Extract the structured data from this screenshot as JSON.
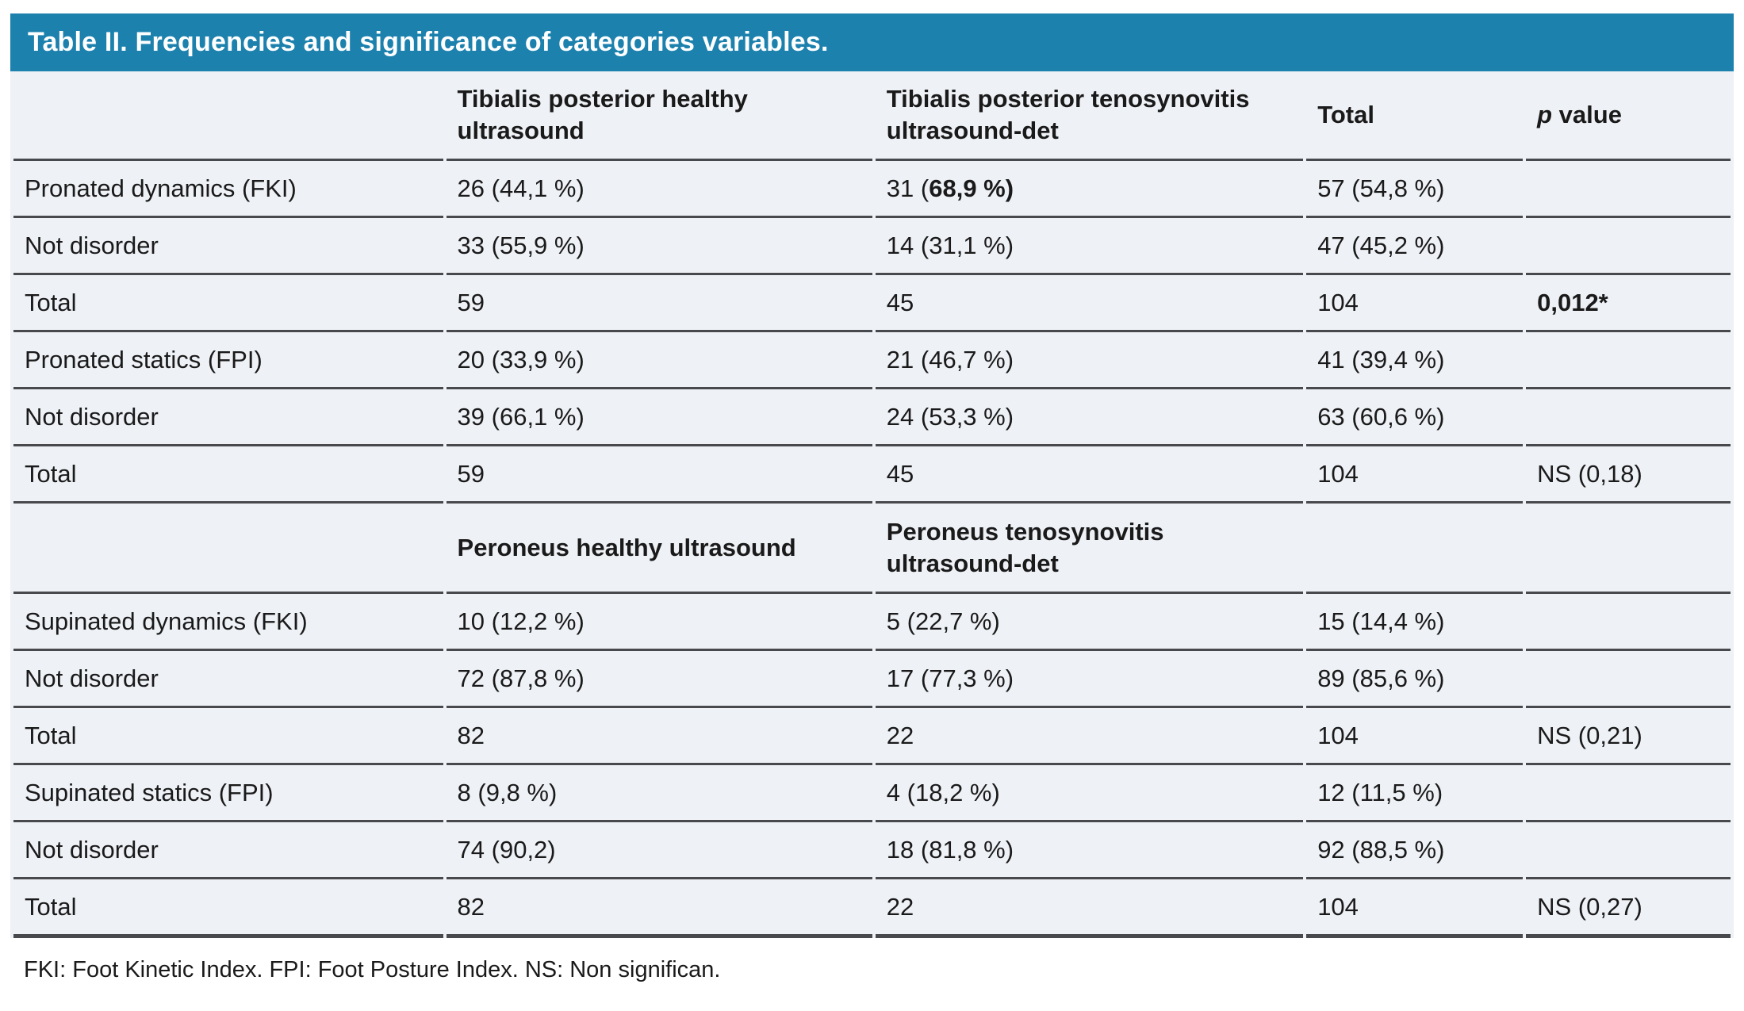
{
  "title": "Table II. Frequencies and significance of categories variables.",
  "colors": {
    "header_bar_bg": "#1c81ad",
    "title_text": "#ffffff",
    "table_bg": "#eef1f6",
    "rule": "#47494c",
    "text": "#1a1a1a"
  },
  "columns": {
    "col1": "",
    "col2": "Tibialis posterior healthy ultrasound",
    "col3": "Tibialis posterior tenosynovitis ultrasound-det",
    "col4": "Total",
    "p_italic": "p",
    "p_rest": " value"
  },
  "rows": [
    {
      "cells": [
        [
          {
            "t": "Pronated dynamics (FKI)"
          }
        ],
        [
          {
            "t": "26 (44,1 %)"
          }
        ],
        [
          {
            "t": "31 ("
          },
          {
            "t": "68,9 %)",
            "bold": true
          }
        ],
        [
          {
            "t": "57 (54,8 %)"
          }
        ],
        []
      ]
    },
    {
      "cells": [
        [
          {
            "t": "Not disorder"
          }
        ],
        [
          {
            "t": "33 (55,9 %)"
          }
        ],
        [
          {
            "t": "14 (31,1 %)"
          }
        ],
        [
          {
            "t": "47 (45,2 %)"
          }
        ],
        []
      ]
    },
    {
      "cells": [
        [
          {
            "t": "Total"
          }
        ],
        [
          {
            "t": "59"
          }
        ],
        [
          {
            "t": "45"
          }
        ],
        [
          {
            "t": "104"
          }
        ],
        [
          {
            "t": "0,012*",
            "bold": true
          }
        ]
      ]
    },
    {
      "cells": [
        [
          {
            "t": "Pronated statics (FPI)"
          }
        ],
        [
          {
            "t": "20 (33,9 %)"
          }
        ],
        [
          {
            "t": "21 (46,7 %)"
          }
        ],
        [
          {
            "t": "41 (39,4 %)"
          }
        ],
        []
      ]
    },
    {
      "cells": [
        [
          {
            "t": "Not disorder"
          }
        ],
        [
          {
            "t": "39 (66,1 %)"
          }
        ],
        [
          {
            "t": "24 (53,3 %)"
          }
        ],
        [
          {
            "t": "63 (60,6 %)"
          }
        ],
        []
      ]
    },
    {
      "cells": [
        [
          {
            "t": "Total"
          }
        ],
        [
          {
            "t": "59"
          }
        ],
        [
          {
            "t": "45"
          }
        ],
        [
          {
            "t": "104"
          }
        ],
        [
          {
            "t": "NS (0,18)"
          }
        ]
      ]
    },
    {
      "subheader": true,
      "cells": [
        [],
        [
          {
            "t": "Peroneus healthy ultrasound",
            "bold": true
          }
        ],
        [
          {
            "t": "Peroneus tenosynovitis ultrasound-det",
            "bold": true
          }
        ],
        [],
        []
      ]
    },
    {
      "cells": [
        [
          {
            "t": "Supinated dynamics (FKI)"
          }
        ],
        [
          {
            "t": "10 (12,2 %)"
          }
        ],
        [
          {
            "t": "5 (22,7 %)"
          }
        ],
        [
          {
            "t": "15 (14,4 %)"
          }
        ],
        []
      ]
    },
    {
      "cells": [
        [
          {
            "t": "Not disorder"
          }
        ],
        [
          {
            "t": "72 (87,8 %)"
          }
        ],
        [
          {
            "t": "17 (77,3 %)"
          }
        ],
        [
          {
            "t": "89 (85,6 %)"
          }
        ],
        []
      ]
    },
    {
      "cells": [
        [
          {
            "t": "Total"
          }
        ],
        [
          {
            "t": "82"
          }
        ],
        [
          {
            "t": "22"
          }
        ],
        [
          {
            "t": "104"
          }
        ],
        [
          {
            "t": "NS (0,21)"
          }
        ]
      ]
    },
    {
      "cells": [
        [
          {
            "t": "Supinated statics (FPI)"
          }
        ],
        [
          {
            "t": "8 (9,8 %)"
          }
        ],
        [
          {
            "t": "4 (18,2 %)"
          }
        ],
        [
          {
            "t": "12 (11,5 %)"
          }
        ],
        []
      ]
    },
    {
      "cells": [
        [
          {
            "t": "Not disorder"
          }
        ],
        [
          {
            "t": "74 (90,2)"
          }
        ],
        [
          {
            "t": "18 (81,8 %)"
          }
        ],
        [
          {
            "t": "92 (88,5 %)"
          }
        ],
        []
      ]
    },
    {
      "cells": [
        [
          {
            "t": "Total"
          }
        ],
        [
          {
            "t": "82"
          }
        ],
        [
          {
            "t": "22"
          }
        ],
        [
          {
            "t": "104"
          }
        ],
        [
          {
            "t": "NS (0,27)"
          }
        ]
      ]
    }
  ],
  "footnote": "FKI: Foot Kinetic Index. FPI: Foot Posture Index. NS: Non significan."
}
